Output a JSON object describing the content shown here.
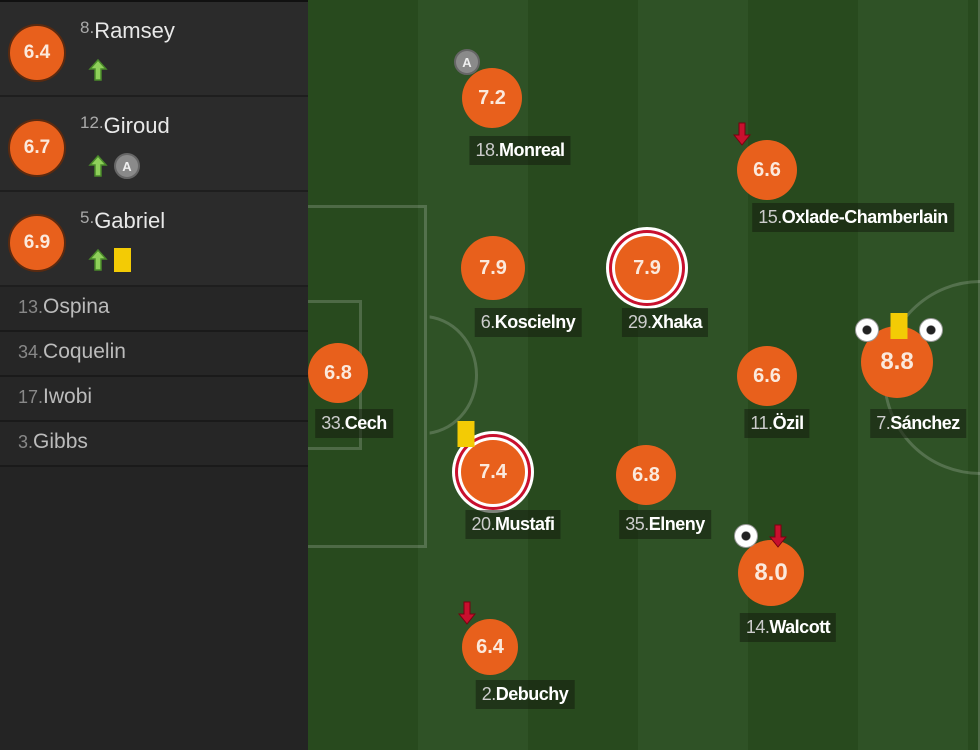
{
  "colors": {
    "rating": "#e8601c",
    "pitch_dark": "#2a4a1f",
    "pitch_light": "#31552a",
    "yellow_card": "#f3cb05",
    "motm_ring": "#c8102e"
  },
  "substitutes_used": [
    {
      "number": "8.",
      "name": "Ramsey",
      "rating": "6.4",
      "icons": [
        "sub-in-arrow"
      ]
    },
    {
      "number": "12.",
      "name": "Giroud",
      "rating": "6.7",
      "icons": [
        "sub-in-arrow",
        "assist"
      ],
      "assist_label": "A"
    },
    {
      "number": "5.",
      "name": "Gabriel",
      "rating": "6.9",
      "icons": [
        "sub-in-arrow",
        "yellow-card"
      ]
    }
  ],
  "bench": [
    {
      "number": "13.",
      "name": "Ospina"
    },
    {
      "number": "34.",
      "name": "Coquelin"
    },
    {
      "number": "17.",
      "name": "Iwobi"
    },
    {
      "number": "3.",
      "name": "Gibbs"
    }
  ],
  "lineup": [
    {
      "number": "18.",
      "name": "Monreal",
      "rating": "7.2",
      "icons": [
        "assist"
      ],
      "assist_label": "A"
    },
    {
      "number": "15.",
      "name": "Oxlade-Chamberlain",
      "rating": "6.6",
      "icons": [
        "sub-out-arrow"
      ]
    },
    {
      "number": "6.",
      "name": "Koscielny",
      "rating": "7.9",
      "icons": []
    },
    {
      "number": "29.",
      "name": "Xhaka",
      "rating": "7.9",
      "icons": [],
      "man_of_match": true
    },
    {
      "number": "33.",
      "name": "Cech",
      "rating": "6.8",
      "icons": []
    },
    {
      "number": "11.",
      "name": "Özil",
      "rating": "6.6",
      "icons": []
    },
    {
      "number": "7.",
      "name": "Sánchez",
      "rating": "8.8",
      "icons": [
        "goal",
        "yellow-card",
        "goal"
      ]
    },
    {
      "number": "20.",
      "name": "Mustafi",
      "rating": "7.4",
      "icons": [
        "yellow-card"
      ],
      "man_of_match": true
    },
    {
      "number": "35.",
      "name": "Elneny",
      "rating": "6.8",
      "icons": []
    },
    {
      "number": "14.",
      "name": "Walcott",
      "rating": "8.0",
      "icons": [
        "goal",
        "sub-out-arrow"
      ]
    },
    {
      "number": "2.",
      "name": "Debuchy",
      "rating": "6.4",
      "icons": [
        "sub-out-arrow"
      ]
    }
  ]
}
